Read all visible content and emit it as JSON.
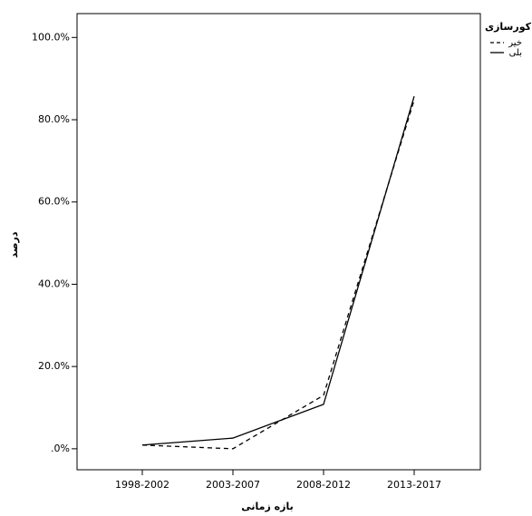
{
  "chart_data": {
    "type": "line",
    "x_label": "بازه زمانی",
    "y_label": "درصد",
    "categories": [
      "1998-2002",
      "2003-2007",
      "2008-2012",
      "2013-2017"
    ],
    "legend_title": "کورسازی",
    "series": [
      {
        "name": "خیر",
        "color": "#000000",
        "line_style": "dashed",
        "values": [
          0.9,
          0,
          13.0,
          84.8
        ]
      },
      {
        "name": "بلی",
        "color": "#000000",
        "line_style": "solid",
        "values": [
          0.9,
          2.6,
          10.8,
          85.7
        ]
      }
    ],
    "ylim": [
      -5.1,
      105.8
    ],
    "yticks": [
      {
        "value": 0,
        "label": ".0%"
      },
      {
        "value": 20,
        "label": "20.0%"
      },
      {
        "value": 40,
        "label": "40.0%"
      },
      {
        "value": 60,
        "label": "60.0%"
      },
      {
        "value": 80,
        "label": "80.0%"
      },
      {
        "value": 100,
        "label": "100.0%"
      }
    ],
    "legend_position": "top-right",
    "grid": false
  }
}
